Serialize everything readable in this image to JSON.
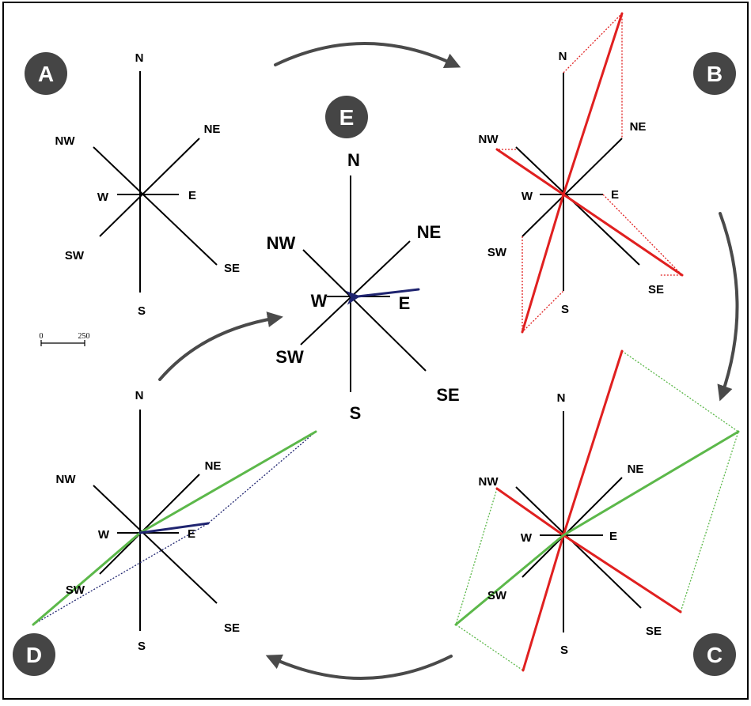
{
  "badges": {
    "a": "A",
    "b": "B",
    "c": "C",
    "d": "D",
    "e": "E"
  },
  "directions": {
    "n": "N",
    "ne": "NE",
    "e": "E",
    "se": "SE",
    "s": "S",
    "sw": "SW",
    "w": "W",
    "nw": "NW"
  },
  "scale_bar": {
    "start": "0",
    "end": "250"
  },
  "colors": {
    "axis": "#000000",
    "stage_b_vector": "#e02020",
    "stage_c_vector": "#5cb84a",
    "resultant_vector": "#1f2470",
    "arrow": "#4a4a4a",
    "badge": "#454545",
    "badge_text": "#ffffff"
  }
}
